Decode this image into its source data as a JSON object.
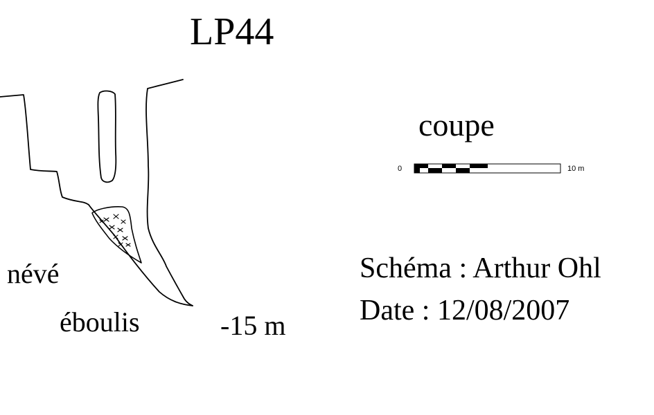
{
  "title": "LP44",
  "view_label": "coupe",
  "scale": {
    "start_label": "0",
    "end_label": "10 m"
  },
  "labels": {
    "neve": "névé",
    "eboulis": "éboulis"
  },
  "depth_label": "-15 m",
  "author_line": "Schéma : Arthur Ohl",
  "date_line": "Date : 12/08/2007",
  "colors": {
    "ink": "#000000",
    "paper": "#ffffff"
  }
}
